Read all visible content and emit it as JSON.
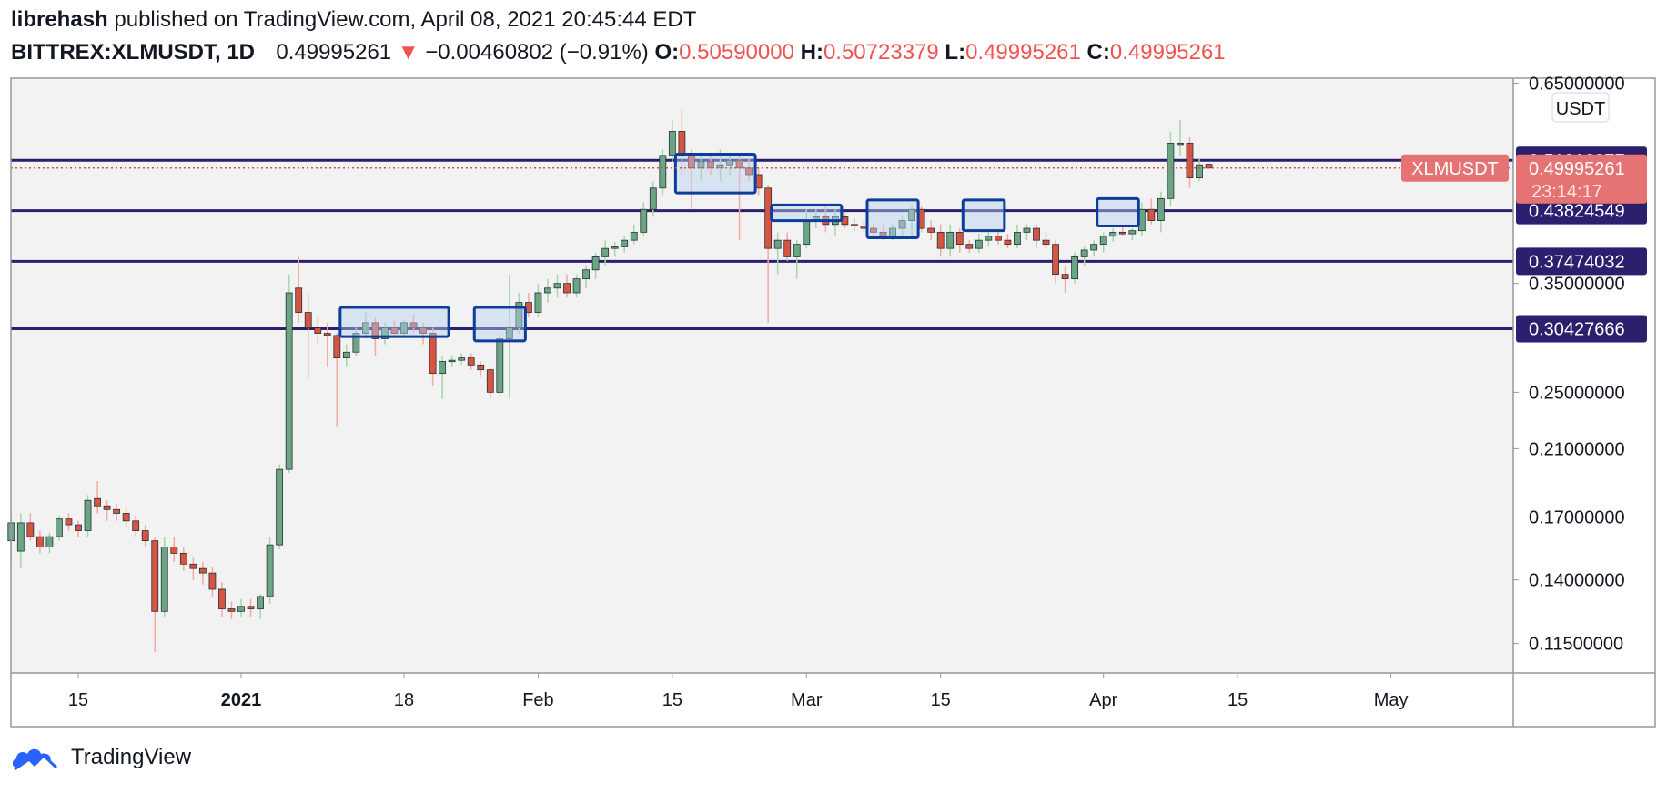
{
  "header": {
    "author": "librehash",
    "published_text": "published on TradingView.com, April 08, 2021 20:45:44 EDT",
    "symbol": "BITTREX:XLMUSDT, 1D",
    "last_price": "0.49995261",
    "change_arrow": "▼",
    "change": "−0.00460802 (−0.91%)",
    "open_label": "O:",
    "open": "0.50590000",
    "high_label": "H:",
    "high": "0.50723379",
    "low_label": "L:",
    "low": "0.49995261",
    "close_label": "C:",
    "close": "0.49995261"
  },
  "footer": {
    "brand": "TradingView"
  },
  "colors": {
    "up": "#6ba583",
    "down": "#d75442",
    "level": "#2b1f6e",
    "box_stroke": "#0d3d9c",
    "box_fill": "#b9d0f0",
    "price_tag": "#e57373",
    "plot_bg": "#f2f2f2",
    "axis_text": "#131722"
  },
  "chart_data": {
    "type": "candlestick",
    "currency": "USDT",
    "y_scale": "log",
    "ylim": [
      0.105,
      0.66
    ],
    "y_ticks": [
      "0.65000000",
      "0.35000000",
      "0.25000000",
      "0.21000000",
      "0.17000000",
      "0.14000000",
      "0.11500000"
    ],
    "x_ticks": [
      "15",
      "2021",
      "18",
      "Feb",
      "15",
      "Mar",
      "15",
      "Apr",
      "15",
      "May"
    ],
    "x_tick_dates": [
      "2020-12-15",
      "2021-01-01",
      "2021-01-18",
      "2021-02-01",
      "2021-02-15",
      "2021-03-01",
      "2021-03-15",
      "2021-04-01",
      "2021-04-15",
      "2021-05-01"
    ],
    "levels": [
      "0.51216977",
      "0.43824549",
      "0.37474032",
      "0.30427666"
    ],
    "price_tag": {
      "symbol": "XLMUSDT",
      "price": "0.49995261",
      "countdown": "23:14:17"
    },
    "zones": [
      {
        "from": "2021-01-12",
        "to": "2021-01-22",
        "low": 0.297,
        "high": 0.325
      },
      {
        "from": "2021-01-26",
        "to": "2021-01-30",
        "low": 0.293,
        "high": 0.325
      },
      {
        "from": "2021-02-16",
        "to": "2021-02-23",
        "low": 0.463,
        "high": 0.522
      },
      {
        "from": "2021-02-26",
        "to": "2021-03-04",
        "low": 0.425,
        "high": 0.446
      },
      {
        "from": "2021-03-08",
        "to": "2021-03-12",
        "low": 0.403,
        "high": 0.453
      },
      {
        "from": "2021-03-18",
        "to": "2021-03-21",
        "low": 0.412,
        "high": 0.453
      },
      {
        "from": "2021-04-01",
        "to": "2021-04-04",
        "low": 0.418,
        "high": 0.455
      }
    ],
    "candles": [
      {
        "d": "2020-12-08",
        "o": 0.158,
        "h": 0.172,
        "l": 0.148,
        "c": 0.167
      },
      {
        "d": "2020-12-09",
        "o": 0.153,
        "h": 0.172,
        "l": 0.145,
        "c": 0.167
      },
      {
        "d": "2020-12-10",
        "o": 0.167,
        "h": 0.172,
        "l": 0.158,
        "c": 0.16
      },
      {
        "d": "2020-12-11",
        "o": 0.16,
        "h": 0.163,
        "l": 0.152,
        "c": 0.155
      },
      {
        "d": "2020-12-12",
        "o": 0.155,
        "h": 0.162,
        "l": 0.152,
        "c": 0.16
      },
      {
        "d": "2020-12-13",
        "o": 0.16,
        "h": 0.171,
        "l": 0.158,
        "c": 0.169
      },
      {
        "d": "2020-12-14",
        "o": 0.169,
        "h": 0.172,
        "l": 0.163,
        "c": 0.166
      },
      {
        "d": "2020-12-15",
        "o": 0.166,
        "h": 0.168,
        "l": 0.16,
        "c": 0.163
      },
      {
        "d": "2020-12-16",
        "o": 0.163,
        "h": 0.182,
        "l": 0.16,
        "c": 0.179
      },
      {
        "d": "2020-12-17",
        "o": 0.18,
        "h": 0.19,
        "l": 0.172,
        "c": 0.176
      },
      {
        "d": "2020-12-18",
        "o": 0.176,
        "h": 0.179,
        "l": 0.168,
        "c": 0.174
      },
      {
        "d": "2020-12-19",
        "o": 0.174,
        "h": 0.177,
        "l": 0.168,
        "c": 0.172
      },
      {
        "d": "2020-12-20",
        "o": 0.172,
        "h": 0.175,
        "l": 0.165,
        "c": 0.168
      },
      {
        "d": "2020-12-21",
        "o": 0.168,
        "h": 0.171,
        "l": 0.16,
        "c": 0.163
      },
      {
        "d": "2020-12-22",
        "o": 0.163,
        "h": 0.166,
        "l": 0.155,
        "c": 0.158
      },
      {
        "d": "2020-12-23",
        "o": 0.158,
        "h": 0.16,
        "l": 0.112,
        "c": 0.127
      },
      {
        "d": "2020-12-24",
        "o": 0.127,
        "h": 0.16,
        "l": 0.125,
        "c": 0.155
      },
      {
        "d": "2020-12-25",
        "o": 0.155,
        "h": 0.16,
        "l": 0.148,
        "c": 0.152
      },
      {
        "d": "2020-12-26",
        "o": 0.152,
        "h": 0.155,
        "l": 0.144,
        "c": 0.147
      },
      {
        "d": "2020-12-27",
        "o": 0.147,
        "h": 0.15,
        "l": 0.14,
        "c": 0.145
      },
      {
        "d": "2020-12-28",
        "o": 0.145,
        "h": 0.148,
        "l": 0.138,
        "c": 0.143
      },
      {
        "d": "2020-12-29",
        "o": 0.143,
        "h": 0.146,
        "l": 0.133,
        "c": 0.136
      },
      {
        "d": "2020-12-30",
        "o": 0.136,
        "h": 0.139,
        "l": 0.125,
        "c": 0.128
      },
      {
        "d": "2020-12-31",
        "o": 0.128,
        "h": 0.131,
        "l": 0.124,
        "c": 0.127
      },
      {
        "d": "2021-01-01",
        "o": 0.127,
        "h": 0.132,
        "l": 0.125,
        "c": 0.129
      },
      {
        "d": "2021-01-02",
        "o": 0.129,
        "h": 0.132,
        "l": 0.125,
        "c": 0.128
      },
      {
        "d": "2021-01-03",
        "o": 0.128,
        "h": 0.134,
        "l": 0.124,
        "c": 0.133
      },
      {
        "d": "2021-01-04",
        "o": 0.133,
        "h": 0.16,
        "l": 0.13,
        "c": 0.156
      },
      {
        "d": "2021-01-05",
        "o": 0.156,
        "h": 0.2,
        "l": 0.154,
        "c": 0.197
      },
      {
        "d": "2021-01-06",
        "o": 0.197,
        "h": 0.36,
        "l": 0.195,
        "c": 0.34
      },
      {
        "d": "2021-01-07",
        "o": 0.345,
        "h": 0.38,
        "l": 0.31,
        "c": 0.32
      },
      {
        "d": "2021-01-08",
        "o": 0.32,
        "h": 0.34,
        "l": 0.26,
        "c": 0.305
      },
      {
        "d": "2021-01-09",
        "o": 0.305,
        "h": 0.315,
        "l": 0.29,
        "c": 0.3
      },
      {
        "d": "2021-01-10",
        "o": 0.3,
        "h": 0.31,
        "l": 0.27,
        "c": 0.298
      },
      {
        "d": "2021-01-11",
        "o": 0.298,
        "h": 0.3,
        "l": 0.225,
        "c": 0.278
      },
      {
        "d": "2021-01-12",
        "o": 0.278,
        "h": 0.29,
        "l": 0.27,
        "c": 0.283
      },
      {
        "d": "2021-01-13",
        "o": 0.283,
        "h": 0.305,
        "l": 0.28,
        "c": 0.3
      },
      {
        "d": "2021-01-14",
        "o": 0.3,
        "h": 0.32,
        "l": 0.295,
        "c": 0.31
      },
      {
        "d": "2021-01-15",
        "o": 0.31,
        "h": 0.315,
        "l": 0.28,
        "c": 0.295
      },
      {
        "d": "2021-01-16",
        "o": 0.295,
        "h": 0.31,
        "l": 0.29,
        "c": 0.305
      },
      {
        "d": "2021-01-17",
        "o": 0.305,
        "h": 0.312,
        "l": 0.298,
        "c": 0.3
      },
      {
        "d": "2021-01-18",
        "o": 0.3,
        "h": 0.312,
        "l": 0.298,
        "c": 0.31
      },
      {
        "d": "2021-01-19",
        "o": 0.31,
        "h": 0.318,
        "l": 0.3,
        "c": 0.305
      },
      {
        "d": "2021-01-20",
        "o": 0.305,
        "h": 0.31,
        "l": 0.29,
        "c": 0.3
      },
      {
        "d": "2021-01-21",
        "o": 0.3,
        "h": 0.305,
        "l": 0.255,
        "c": 0.265
      },
      {
        "d": "2021-01-22",
        "o": 0.265,
        "h": 0.28,
        "l": 0.245,
        "c": 0.275
      },
      {
        "d": "2021-01-23",
        "o": 0.275,
        "h": 0.28,
        "l": 0.27,
        "c": 0.276
      },
      {
        "d": "2021-01-24",
        "o": 0.276,
        "h": 0.282,
        "l": 0.272,
        "c": 0.278
      },
      {
        "d": "2021-01-25",
        "o": 0.278,
        "h": 0.282,
        "l": 0.268,
        "c": 0.272
      },
      {
        "d": "2021-01-26",
        "o": 0.272,
        "h": 0.275,
        "l": 0.262,
        "c": 0.268
      },
      {
        "d": "2021-01-27",
        "o": 0.268,
        "h": 0.27,
        "l": 0.245,
        "c": 0.25
      },
      {
        "d": "2021-01-28",
        "o": 0.25,
        "h": 0.3,
        "l": 0.248,
        "c": 0.295
      },
      {
        "d": "2021-01-29",
        "o": 0.295,
        "h": 0.36,
        "l": 0.245,
        "c": 0.305
      },
      {
        "d": "2021-01-30",
        "o": 0.305,
        "h": 0.34,
        "l": 0.3,
        "c": 0.33
      },
      {
        "d": "2021-01-31",
        "o": 0.33,
        "h": 0.34,
        "l": 0.315,
        "c": 0.32
      },
      {
        "d": "2021-02-01",
        "o": 0.32,
        "h": 0.35,
        "l": 0.315,
        "c": 0.34
      },
      {
        "d": "2021-02-02",
        "o": 0.34,
        "h": 0.355,
        "l": 0.33,
        "c": 0.345
      },
      {
        "d": "2021-02-03",
        "o": 0.345,
        "h": 0.36,
        "l": 0.335,
        "c": 0.35
      },
      {
        "d": "2021-02-04",
        "o": 0.35,
        "h": 0.36,
        "l": 0.335,
        "c": 0.34
      },
      {
        "d": "2021-02-05",
        "o": 0.34,
        "h": 0.36,
        "l": 0.335,
        "c": 0.355
      },
      {
        "d": "2021-02-06",
        "o": 0.355,
        "h": 0.37,
        "l": 0.345,
        "c": 0.365
      },
      {
        "d": "2021-02-07",
        "o": 0.365,
        "h": 0.385,
        "l": 0.355,
        "c": 0.38
      },
      {
        "d": "2021-02-08",
        "o": 0.38,
        "h": 0.4,
        "l": 0.37,
        "c": 0.39
      },
      {
        "d": "2021-02-09",
        "o": 0.39,
        "h": 0.398,
        "l": 0.38,
        "c": 0.392
      },
      {
        "d": "2021-02-10",
        "o": 0.392,
        "h": 0.405,
        "l": 0.385,
        "c": 0.4
      },
      {
        "d": "2021-02-11",
        "o": 0.4,
        "h": 0.42,
        "l": 0.395,
        "c": 0.41
      },
      {
        "d": "2021-02-12",
        "o": 0.41,
        "h": 0.45,
        "l": 0.405,
        "c": 0.44
      },
      {
        "d": "2021-02-13",
        "o": 0.44,
        "h": 0.48,
        "l": 0.43,
        "c": 0.47
      },
      {
        "d": "2021-02-14",
        "o": 0.47,
        "h": 0.53,
        "l": 0.46,
        "c": 0.52
      },
      {
        "d": "2021-02-15",
        "o": 0.52,
        "h": 0.58,
        "l": 0.51,
        "c": 0.56
      },
      {
        "d": "2021-02-16",
        "o": 0.56,
        "h": 0.6,
        "l": 0.49,
        "c": 0.52
      },
      {
        "d": "2021-02-17",
        "o": 0.52,
        "h": 0.53,
        "l": 0.44,
        "c": 0.5
      },
      {
        "d": "2021-02-18",
        "o": 0.5,
        "h": 0.52,
        "l": 0.48,
        "c": 0.51
      },
      {
        "d": "2021-02-19",
        "o": 0.51,
        "h": 0.52,
        "l": 0.49,
        "c": 0.5
      },
      {
        "d": "2021-02-20",
        "o": 0.5,
        "h": 0.53,
        "l": 0.48,
        "c": 0.505
      },
      {
        "d": "2021-02-21",
        "o": 0.505,
        "h": 0.52,
        "l": 0.49,
        "c": 0.512
      },
      {
        "d": "2021-02-22",
        "o": 0.512,
        "h": 0.52,
        "l": 0.4,
        "c": 0.5
      },
      {
        "d": "2021-02-23",
        "o": 0.5,
        "h": 0.515,
        "l": 0.48,
        "c": 0.49
      },
      {
        "d": "2021-02-24",
        "o": 0.49,
        "h": 0.5,
        "l": 0.46,
        "c": 0.47
      },
      {
        "d": "2021-02-25",
        "o": 0.47,
        "h": 0.475,
        "l": 0.31,
        "c": 0.39
      },
      {
        "d": "2021-02-26",
        "o": 0.39,
        "h": 0.41,
        "l": 0.36,
        "c": 0.4
      },
      {
        "d": "2021-02-27",
        "o": 0.4,
        "h": 0.41,
        "l": 0.375,
        "c": 0.38
      },
      {
        "d": "2021-02-28",
        "o": 0.38,
        "h": 0.4,
        "l": 0.355,
        "c": 0.395
      },
      {
        "d": "2021-03-01",
        "o": 0.395,
        "h": 0.44,
        "l": 0.39,
        "c": 0.425
      },
      {
        "d": "2021-03-02",
        "o": 0.425,
        "h": 0.44,
        "l": 0.415,
        "c": 0.43
      },
      {
        "d": "2021-03-03",
        "o": 0.43,
        "h": 0.445,
        "l": 0.41,
        "c": 0.42
      },
      {
        "d": "2021-03-04",
        "o": 0.42,
        "h": 0.44,
        "l": 0.405,
        "c": 0.43
      },
      {
        "d": "2021-03-05",
        "o": 0.43,
        "h": 0.435,
        "l": 0.415,
        "c": 0.42
      },
      {
        "d": "2021-03-06",
        "o": 0.42,
        "h": 0.428,
        "l": 0.412,
        "c": 0.418
      },
      {
        "d": "2021-03-07",
        "o": 0.418,
        "h": 0.425,
        "l": 0.41,
        "c": 0.415
      },
      {
        "d": "2021-03-08",
        "o": 0.415,
        "h": 0.422,
        "l": 0.405,
        "c": 0.41
      },
      {
        "d": "2021-03-09",
        "o": 0.41,
        "h": 0.42,
        "l": 0.4,
        "c": 0.405
      },
      {
        "d": "2021-03-10",
        "o": 0.405,
        "h": 0.42,
        "l": 0.4,
        "c": 0.415
      },
      {
        "d": "2021-03-11",
        "o": 0.415,
        "h": 0.432,
        "l": 0.405,
        "c": 0.425
      },
      {
        "d": "2021-03-12",
        "o": 0.425,
        "h": 0.445,
        "l": 0.405,
        "c": 0.44
      },
      {
        "d": "2021-03-13",
        "o": 0.44,
        "h": 0.445,
        "l": 0.41,
        "c": 0.415
      },
      {
        "d": "2021-03-14",
        "o": 0.415,
        "h": 0.425,
        "l": 0.4,
        "c": 0.41
      },
      {
        "d": "2021-03-15",
        "o": 0.41,
        "h": 0.42,
        "l": 0.38,
        "c": 0.39
      },
      {
        "d": "2021-03-16",
        "o": 0.39,
        "h": 0.42,
        "l": 0.38,
        "c": 0.41
      },
      {
        "d": "2021-03-17",
        "o": 0.41,
        "h": 0.415,
        "l": 0.385,
        "c": 0.395
      },
      {
        "d": "2021-03-18",
        "o": 0.395,
        "h": 0.4,
        "l": 0.385,
        "c": 0.39
      },
      {
        "d": "2021-03-19",
        "o": 0.39,
        "h": 0.408,
        "l": 0.385,
        "c": 0.4
      },
      {
        "d": "2021-03-20",
        "o": 0.4,
        "h": 0.41,
        "l": 0.392,
        "c": 0.405
      },
      {
        "d": "2021-03-21",
        "o": 0.405,
        "h": 0.412,
        "l": 0.395,
        "c": 0.4
      },
      {
        "d": "2021-03-22",
        "o": 0.4,
        "h": 0.408,
        "l": 0.39,
        "c": 0.395
      },
      {
        "d": "2021-03-23",
        "o": 0.395,
        "h": 0.42,
        "l": 0.39,
        "c": 0.41
      },
      {
        "d": "2021-03-24",
        "o": 0.41,
        "h": 0.42,
        "l": 0.4,
        "c": 0.415
      },
      {
        "d": "2021-03-25",
        "o": 0.415,
        "h": 0.42,
        "l": 0.39,
        "c": 0.4
      },
      {
        "d": "2021-03-26",
        "o": 0.4,
        "h": 0.41,
        "l": 0.39,
        "c": 0.395
      },
      {
        "d": "2021-03-27",
        "o": 0.395,
        "h": 0.4,
        "l": 0.35,
        "c": 0.36
      },
      {
        "d": "2021-03-28",
        "o": 0.36,
        "h": 0.37,
        "l": 0.34,
        "c": 0.355
      },
      {
        "d": "2021-03-29",
        "o": 0.355,
        "h": 0.385,
        "l": 0.35,
        "c": 0.38
      },
      {
        "d": "2021-03-30",
        "o": 0.38,
        "h": 0.392,
        "l": 0.37,
        "c": 0.388
      },
      {
        "d": "2021-03-31",
        "o": 0.388,
        "h": 0.4,
        "l": 0.38,
        "c": 0.395
      },
      {
        "d": "2021-04-01",
        "o": 0.395,
        "h": 0.41,
        "l": 0.385,
        "c": 0.405
      },
      {
        "d": "2021-04-02",
        "o": 0.405,
        "h": 0.415,
        "l": 0.398,
        "c": 0.41
      },
      {
        "d": "2021-04-03",
        "o": 0.41,
        "h": 0.418,
        "l": 0.405,
        "c": 0.408
      },
      {
        "d": "2021-04-04",
        "o": 0.408,
        "h": 0.415,
        "l": 0.4,
        "c": 0.412
      },
      {
        "d": "2021-04-05",
        "o": 0.412,
        "h": 0.45,
        "l": 0.405,
        "c": 0.44
      },
      {
        "d": "2021-04-06",
        "o": 0.44,
        "h": 0.455,
        "l": 0.42,
        "c": 0.425
      },
      {
        "d": "2021-04-07",
        "o": 0.425,
        "h": 0.465,
        "l": 0.41,
        "c": 0.455
      },
      {
        "d": "2021-04-08",
        "o": 0.455,
        "h": 0.56,
        "l": 0.445,
        "c": 0.54
      },
      {
        "d": "2021-04-09",
        "o": 0.54,
        "h": 0.58,
        "l": 0.52,
        "c": 0.54
      },
      {
        "d": "2021-04-10",
        "o": 0.54,
        "h": 0.55,
        "l": 0.47,
        "c": 0.485
      },
      {
        "d": "2021-04-11",
        "o": 0.485,
        "h": 0.515,
        "l": 0.48,
        "c": 0.505
      },
      {
        "d": "2021-04-12",
        "o": 0.5059,
        "h": 0.50723379,
        "l": 0.49995261,
        "c": 0.49995261
      }
    ]
  }
}
